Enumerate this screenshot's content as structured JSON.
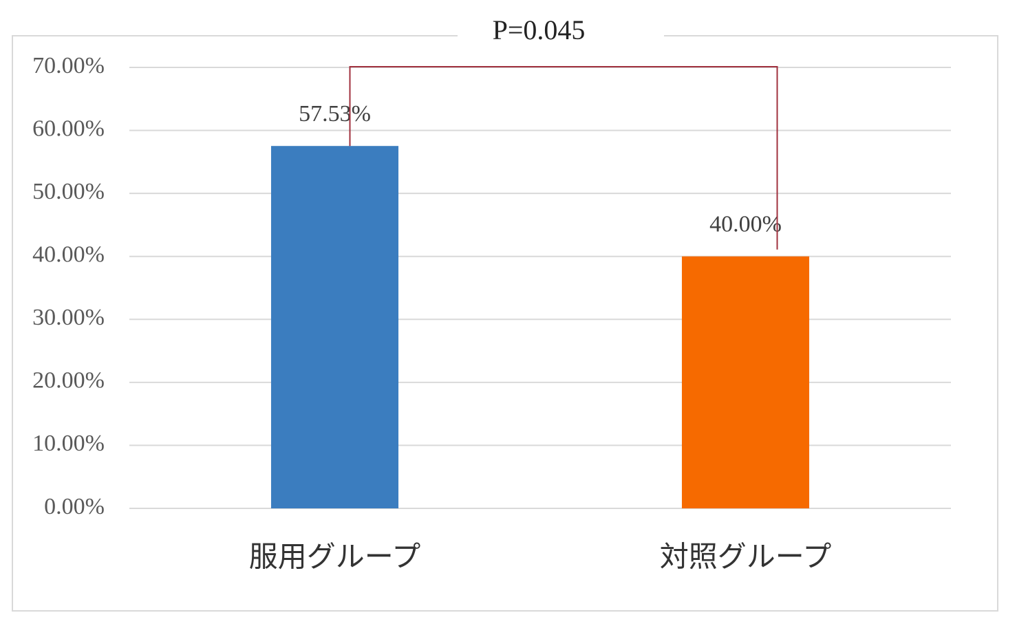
{
  "chart_data": {
    "type": "bar",
    "title": "P=0.045",
    "categories": [
      "服用グループ",
      "対照グループ"
    ],
    "values": [
      57.53,
      40
    ],
    "value_labels": [
      "57.53%",
      "40.00%"
    ],
    "colors": [
      "#3b7dbf",
      "#f66a00"
    ],
    "ylim": [
      0,
      70
    ],
    "yticks": [
      {
        "value": 0,
        "label": "0.00%"
      },
      {
        "value": 10,
        "label": "10.00%"
      },
      {
        "value": 20,
        "label": "20.00%"
      },
      {
        "value": 30,
        "label": "30.00%"
      },
      {
        "value": 40,
        "label": "40.00%"
      },
      {
        "value": 50,
        "label": "50.00%"
      },
      {
        "value": 60,
        "label": "60.00%"
      },
      {
        "value": 70,
        "label": "70.00%"
      }
    ],
    "grid": true
  }
}
